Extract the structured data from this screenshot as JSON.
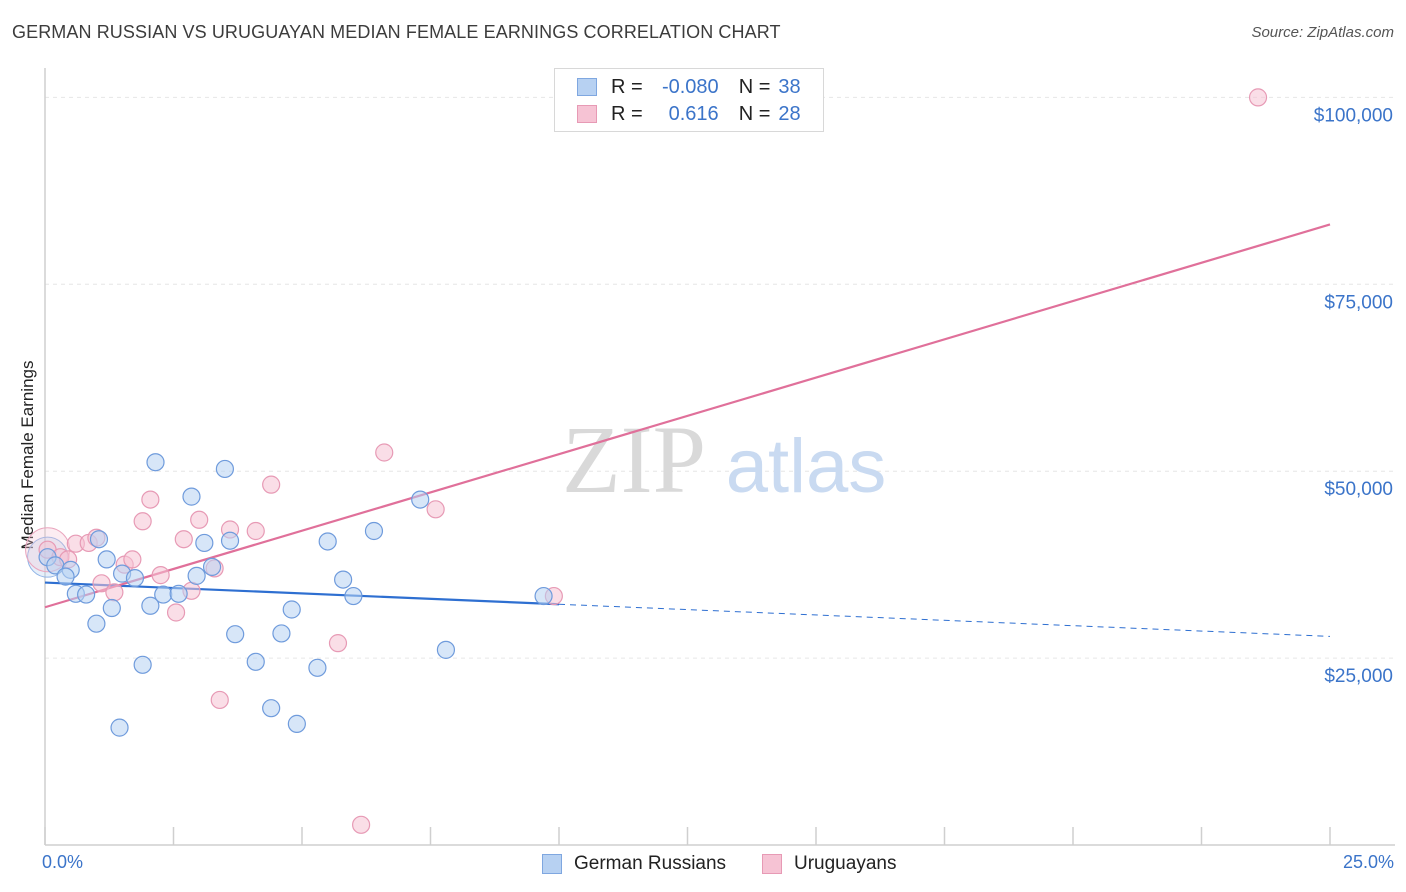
{
  "title": "GERMAN RUSSIAN VS URUGUAYAN MEDIAN FEMALE EARNINGS CORRELATION CHART",
  "source": "Source: ZipAtlas.com",
  "watermark": {
    "zip": "ZIP",
    "atlas": "atlas"
  },
  "colors": {
    "blue": "#3b74c9",
    "blue_fill": "#b7d1f2",
    "blue_line": "#2e6fd1",
    "pink": "#e0709a",
    "pink_fill": "#f6c3d4",
    "grid": "#e6e6e6",
    "axis": "#cfcfcf"
  },
  "legend": {
    "rows": [
      {
        "r_label": "R =",
        "r_value": "-0.080",
        "n_label": "N =",
        "n_value": "38"
      },
      {
        "r_label": "R =",
        "r_value": "0.616",
        "n_label": "N =",
        "n_value": "28"
      }
    ]
  },
  "bottom_legend": {
    "series1": "German Russians",
    "series2": "Uruguayans"
  },
  "chart_data": {
    "type": "scatter",
    "title": "GERMAN RUSSIAN VS URUGUAYAN MEDIAN FEMALE EARNINGS CORRELATION CHART",
    "xlabel": "",
    "ylabel": "Median Female Earnings",
    "xlim": [
      0,
      25
    ],
    "ylim": [
      0,
      105000
    ],
    "x_tick_labels": [
      "0.0%",
      "25.0%"
    ],
    "y_ticks": [
      25000,
      50000,
      75000,
      100000
    ],
    "y_tick_labels": [
      "$25,000",
      "$50,000",
      "$75,000",
      "$100,000"
    ],
    "grid": true,
    "legend_position": "top-center",
    "series": [
      {
        "name": "German Russians",
        "r": -0.08,
        "n": 38,
        "points": [
          [
            0.05,
            38500
          ],
          [
            0.2,
            37400
          ],
          [
            0.5,
            36800
          ],
          [
            0.4,
            35900
          ],
          [
            0.6,
            33600
          ],
          [
            0.8,
            33500
          ],
          [
            1.0,
            29600
          ],
          [
            1.05,
            40900
          ],
          [
            1.2,
            38200
          ],
          [
            1.3,
            31700
          ],
          [
            1.5,
            36300
          ],
          [
            1.75,
            35700
          ],
          [
            1.9,
            24100
          ],
          [
            1.45,
            15700
          ],
          [
            2.05,
            32000
          ],
          [
            2.15,
            51200
          ],
          [
            2.3,
            33500
          ],
          [
            2.6,
            33600
          ],
          [
            2.85,
            46600
          ],
          [
            2.95,
            36000
          ],
          [
            3.1,
            40400
          ],
          [
            3.25,
            37200
          ],
          [
            3.5,
            50300
          ],
          [
            3.6,
            40700
          ],
          [
            3.7,
            28200
          ],
          [
            4.1,
            24500
          ],
          [
            4.4,
            18300
          ],
          [
            4.6,
            28300
          ],
          [
            4.9,
            16200
          ],
          [
            4.8,
            31500
          ],
          [
            5.3,
            23700
          ],
          [
            5.5,
            40600
          ],
          [
            5.8,
            35500
          ],
          [
            6.0,
            33300
          ],
          [
            6.4,
            42000
          ],
          [
            7.3,
            46200
          ],
          [
            7.8,
            26100
          ],
          [
            9.7,
            33300
          ]
        ],
        "trend": {
          "x": [
            0,
            10,
            25
          ],
          "y": [
            35100,
            32200,
            27900
          ],
          "solid_until": 10
        }
      },
      {
        "name": "Uruguayans",
        "r": 0.616,
        "n": 28,
        "points": [
          [
            0.05,
            39500
          ],
          [
            0.3,
            38500
          ],
          [
            0.45,
            38200
          ],
          [
            0.6,
            40300
          ],
          [
            0.85,
            40400
          ],
          [
            1.0,
            41100
          ],
          [
            1.1,
            35000
          ],
          [
            1.35,
            33800
          ],
          [
            1.55,
            37500
          ],
          [
            1.7,
            38200
          ],
          [
            1.9,
            43300
          ],
          [
            2.05,
            46200
          ],
          [
            2.25,
            36100
          ],
          [
            2.55,
            31100
          ],
          [
            2.7,
            40900
          ],
          [
            2.85,
            34000
          ],
          [
            3.0,
            43500
          ],
          [
            3.3,
            37000
          ],
          [
            3.4,
            19400
          ],
          [
            3.6,
            42200
          ],
          [
            4.1,
            42000
          ],
          [
            4.4,
            48200
          ],
          [
            5.7,
            27000
          ],
          [
            6.15,
            2700
          ],
          [
            6.6,
            52500
          ],
          [
            7.6,
            44900
          ],
          [
            9.9,
            33300
          ],
          [
            23.6,
            100000
          ]
        ],
        "trend": {
          "x": [
            0,
            25
          ],
          "y": [
            31800,
            83000
          ]
        }
      }
    ]
  }
}
